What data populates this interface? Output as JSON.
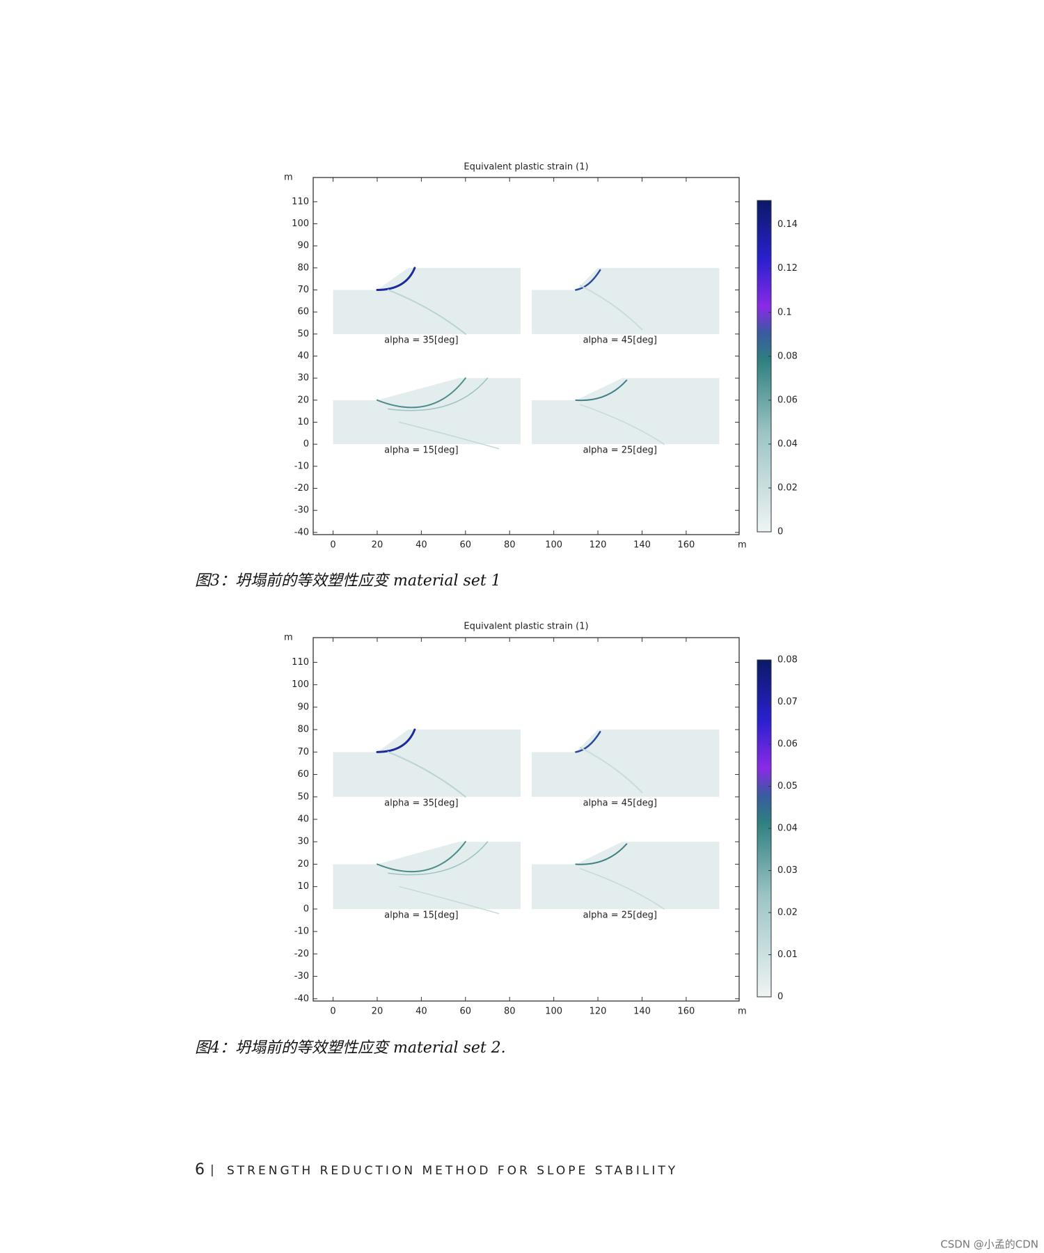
{
  "figures": [
    {
      "title": "Equivalent plastic strain (1)",
      "y_unit": "m",
      "x_unit": "m",
      "xlim": [
        -9,
        184
      ],
      "ylim": [
        -41,
        121
      ],
      "xticks": [
        0,
        20,
        40,
        60,
        80,
        100,
        120,
        140,
        160
      ],
      "yticks": [
        110,
        100,
        90,
        80,
        70,
        60,
        50,
        40,
        30,
        20,
        10,
        0,
        -10,
        -20,
        -30,
        -40
      ],
      "colorbar": {
        "lim": [
          0,
          0.151
        ],
        "ticks": [
          0.14,
          0.12,
          0.1,
          0.08,
          0.06,
          0.04,
          0.02,
          0
        ]
      },
      "panels": [
        "alpha = 35[deg]",
        "alpha = 45[deg]",
        "alpha = 15[deg]",
        "alpha = 25[deg]"
      ],
      "caption": "图3：坍塌前的等效塑性应变 material set 1"
    },
    {
      "title": "Equivalent plastic strain (1)",
      "y_unit": "m",
      "x_unit": "m",
      "xlim": [
        -9,
        184
      ],
      "ylim": [
        -41,
        121
      ],
      "xticks": [
        0,
        20,
        40,
        60,
        80,
        100,
        120,
        140,
        160
      ],
      "yticks": [
        110,
        100,
        90,
        80,
        70,
        60,
        50,
        40,
        30,
        20,
        10,
        0,
        -10,
        -20,
        -30,
        -40
      ],
      "colorbar": {
        "lim": [
          0,
          0.08
        ],
        "ticks": [
          0.08,
          0.07,
          0.06,
          0.05,
          0.04,
          0.03,
          0.02,
          0.01,
          0
        ]
      },
      "panels": [
        "alpha = 35[deg]",
        "alpha = 45[deg]",
        "alpha = 15[deg]",
        "alpha = 25[deg]"
      ],
      "caption": "图4：坍塌前的等效塑性应变 material set 2."
    }
  ],
  "footer": {
    "page": "6",
    "separator": "|",
    "title": "STRENGTH REDUCTION METHOD FOR SLOPE STABILITY"
  },
  "watermark": "CSDN @小孟的CDN"
}
